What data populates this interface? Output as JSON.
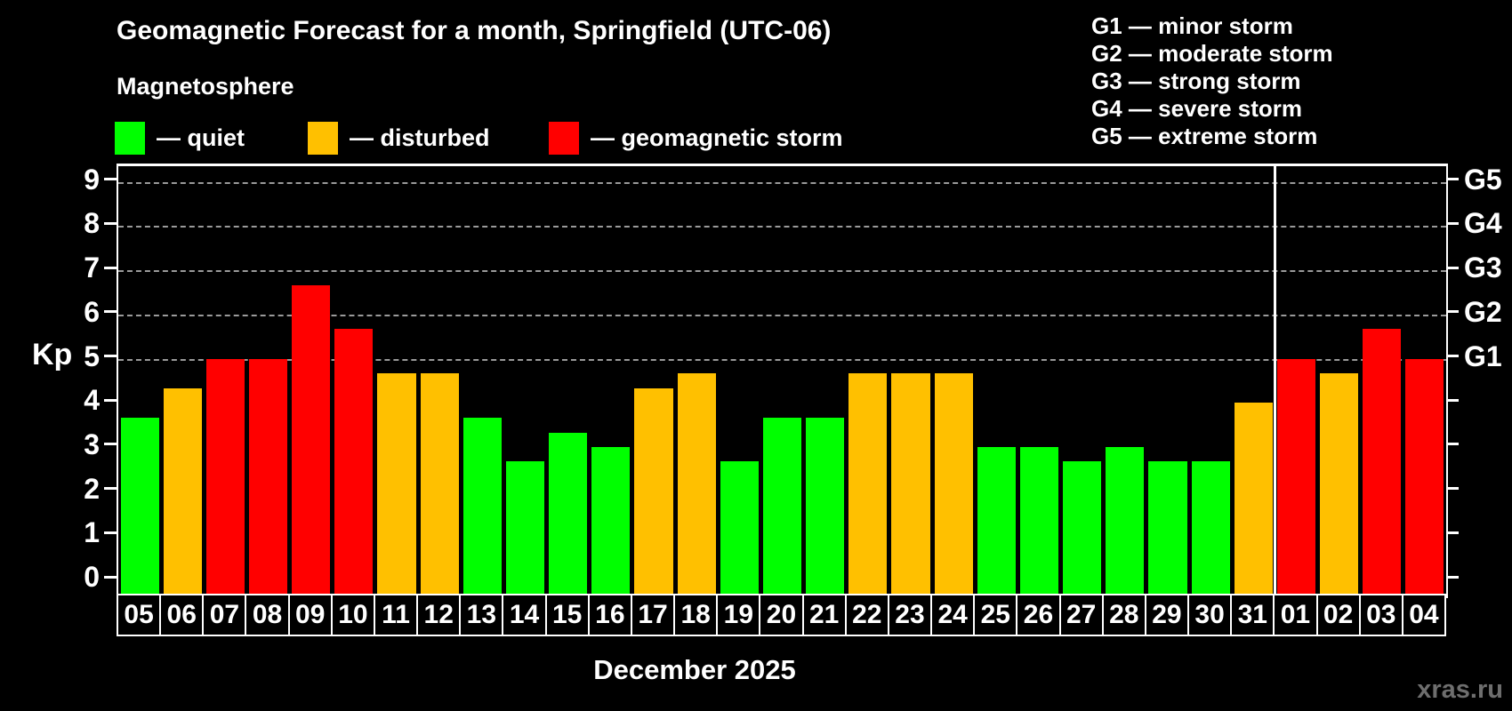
{
  "title": "Geomagnetic Forecast for a month, Springfield (UTC-06)",
  "subtitle": "Magnetosphere",
  "legend": {
    "items": [
      {
        "key": "quiet",
        "label": "— quiet"
      },
      {
        "key": "disturbed",
        "label": "— disturbed"
      },
      {
        "key": "storm",
        "label": "— geomagnetic storm"
      }
    ]
  },
  "g_legend": {
    "items": [
      "G1 — minor storm",
      "G2 — moderate storm",
      "G3 — strong storm",
      "G4 — severe storm",
      "G5 — extreme storm"
    ]
  },
  "colors": {
    "quiet": "#00ff00",
    "disturbed": "#ffc000",
    "storm": "#ff0000",
    "grid": "#9a9a9a",
    "axis": "#ffffff",
    "watermark": "#6e6e6e"
  },
  "axis": {
    "y_label": "Kp",
    "x_label": "December 2025"
  },
  "watermark": "xras.ru",
  "chart_data": {
    "type": "bar",
    "title": "Geomagnetic Forecast for a month, Springfield (UTC-06)",
    "xlabel": "December 2025",
    "ylabel": "Kp",
    "ylim": [
      -0.4,
      9.35
    ],
    "grid": "dashed horizontal at Kp 5-9",
    "legend_position": "top-left and top-right",
    "categories": [
      "05",
      "06",
      "07",
      "08",
      "09",
      "10",
      "11",
      "12",
      "13",
      "14",
      "15",
      "16",
      "17",
      "18",
      "19",
      "20",
      "21",
      "22",
      "23",
      "24",
      "25",
      "26",
      "27",
      "28",
      "29",
      "30",
      "31",
      "01",
      "02",
      "03",
      "04"
    ],
    "values": [
      3.67,
      4.33,
      5.0,
      5.0,
      6.67,
      5.67,
      4.67,
      4.67,
      3.67,
      2.67,
      3.33,
      3.0,
      4.33,
      4.67,
      2.67,
      3.67,
      3.67,
      4.67,
      4.67,
      4.67,
      3.0,
      3.0,
      2.67,
      3.0,
      2.67,
      2.67,
      4.0,
      5.0,
      4.67,
      5.67,
      5.0
    ],
    "status": [
      "quiet",
      "disturbed",
      "storm",
      "storm",
      "storm",
      "storm",
      "disturbed",
      "disturbed",
      "quiet",
      "quiet",
      "quiet",
      "quiet",
      "disturbed",
      "disturbed",
      "quiet",
      "quiet",
      "quiet",
      "disturbed",
      "disturbed",
      "disturbed",
      "quiet",
      "quiet",
      "quiet",
      "quiet",
      "quiet",
      "quiet",
      "disturbed",
      "storm",
      "disturbed",
      "storm",
      "storm"
    ],
    "separator_after_index": 26,
    "y_ticks": [
      0,
      1,
      2,
      3,
      4,
      5,
      6,
      7,
      8,
      9
    ],
    "gridlines_at": [
      5,
      6,
      7,
      8,
      9
    ],
    "g_labels": [
      {
        "value": 5,
        "label": "G1"
      },
      {
        "value": 6,
        "label": "G2"
      },
      {
        "value": 7,
        "label": "G3"
      },
      {
        "value": 8,
        "label": "G4"
      },
      {
        "value": 9,
        "label": "G5"
      }
    ]
  }
}
